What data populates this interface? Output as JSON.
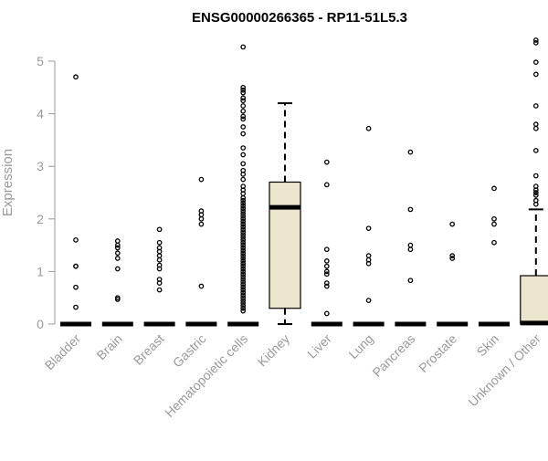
{
  "chart_data": {
    "type": "boxplot",
    "title": "ENSG00000266365 - RP11-51L5.3",
    "xlabel": "",
    "ylabel": "Expression",
    "ylim": [
      0,
      5.5
    ],
    "yticks": [
      0,
      1,
      2,
      3,
      4,
      5
    ],
    "grid": false,
    "legend": "none",
    "colors": {
      "box_fill": "#ece6cf",
      "stroke": "#000000",
      "axis": "#999999",
      "text_muted": "#999999"
    },
    "categories": [
      "Bladder",
      "Brain",
      "Breast",
      "Gastric",
      "Hematopoietic cells",
      "Kidney",
      "Liver",
      "Lung",
      "Pancreas",
      "Prostate",
      "Skin",
      "Unknown / Other"
    ],
    "boxes": [
      {
        "category": "Bladder",
        "q1": 0,
        "median": 0,
        "q3": 0,
        "whisker_low": 0,
        "whisker_high": 0,
        "outliers": [
          4.7,
          1.6,
          1.1,
          1.1,
          0.7,
          0.32
        ]
      },
      {
        "category": "Brain",
        "q1": 0,
        "median": 0,
        "q3": 0,
        "whisker_low": 0,
        "whisker_high": 0,
        "outliers": [
          1.58,
          1.5,
          1.45,
          1.35,
          1.25,
          1.05,
          0.5,
          0.47
        ]
      },
      {
        "category": "Breast",
        "q1": 0,
        "median": 0,
        "q3": 0,
        "whisker_low": 0,
        "whisker_high": 0,
        "outliers": [
          1.8,
          1.55,
          1.45,
          1.38,
          1.3,
          1.22,
          1.12,
          1.05,
          0.85,
          0.78,
          0.65
        ]
      },
      {
        "category": "Gastric",
        "q1": 0,
        "median": 0,
        "q3": 0,
        "whisker_low": 0,
        "whisker_high": 0,
        "outliers": [
          2.75,
          2.15,
          2.08,
          2.0,
          1.9,
          0.72
        ]
      },
      {
        "category": "Hematopoietic cells",
        "q1": 0,
        "median": 0,
        "q3": 0,
        "whisker_low": 0,
        "whisker_high": 0,
        "outliers": [
          5.27,
          4.5,
          4.45,
          4.4,
          4.3,
          4.25,
          4.15,
          4.05,
          3.95,
          3.9,
          3.75,
          3.62,
          3.35,
          3.22,
          3.05,
          2.92,
          2.85,
          2.75,
          2.62,
          2.55,
          2.48,
          2.4,
          2.35,
          2.3,
          2.25,
          2.2,
          2.15,
          2.1,
          2.05,
          2.0,
          1.95,
          1.9,
          1.85,
          1.8,
          1.75,
          1.7,
          1.65,
          1.6,
          1.55,
          1.5,
          1.45,
          1.4,
          1.35,
          1.3,
          1.25,
          1.2,
          1.15,
          1.1,
          1.05,
          1.0,
          0.95,
          0.9,
          0.85,
          0.8,
          0.75,
          0.7,
          0.65,
          0.6,
          0.55,
          0.5,
          0.45,
          0.4,
          0.35,
          0.3,
          0.25
        ]
      },
      {
        "category": "Kidney",
        "q1": 0.3,
        "median": 2.22,
        "q3": 2.7,
        "whisker_low": 0,
        "whisker_high": 4.2,
        "outliers": []
      },
      {
        "category": "Liver",
        "q1": 0,
        "median": 0,
        "q3": 0,
        "whisker_low": 0,
        "whisker_high": 0,
        "outliers": [
          3.08,
          2.65,
          1.42,
          1.2,
          1.1,
          1.0,
          0.95,
          0.78,
          0.72,
          0.2
        ]
      },
      {
        "category": "Lung",
        "q1": 0,
        "median": 0,
        "q3": 0,
        "whisker_low": 0,
        "whisker_high": 0,
        "outliers": [
          3.72,
          1.82,
          1.3,
          1.22,
          1.15,
          0.45
        ]
      },
      {
        "category": "Pancreas",
        "q1": 0,
        "median": 0,
        "q3": 0,
        "whisker_low": 0,
        "whisker_high": 0,
        "outliers": [
          3.27,
          2.18,
          1.5,
          1.42,
          0.83
        ]
      },
      {
        "category": "Prostate",
        "q1": 0,
        "median": 0,
        "q3": 0,
        "whisker_low": 0,
        "whisker_high": 0,
        "outliers": [
          1.9,
          1.3,
          1.25
        ]
      },
      {
        "category": "Skin",
        "q1": 0,
        "median": 0,
        "q3": 0,
        "whisker_low": 0,
        "whisker_high": 0,
        "outliers": [
          2.58,
          2.0,
          1.9,
          1.55
        ]
      },
      {
        "category": "Unknown / Other",
        "q1": 0,
        "median": 0.02,
        "q3": 0.92,
        "whisker_low": 0,
        "whisker_high": 2.18,
        "outliers": [
          5.4,
          5.35,
          4.98,
          4.75,
          4.15,
          3.8,
          3.72,
          3.3,
          2.82,
          2.62,
          2.55,
          2.5,
          2.45,
          2.35,
          2.28
        ]
      }
    ]
  }
}
